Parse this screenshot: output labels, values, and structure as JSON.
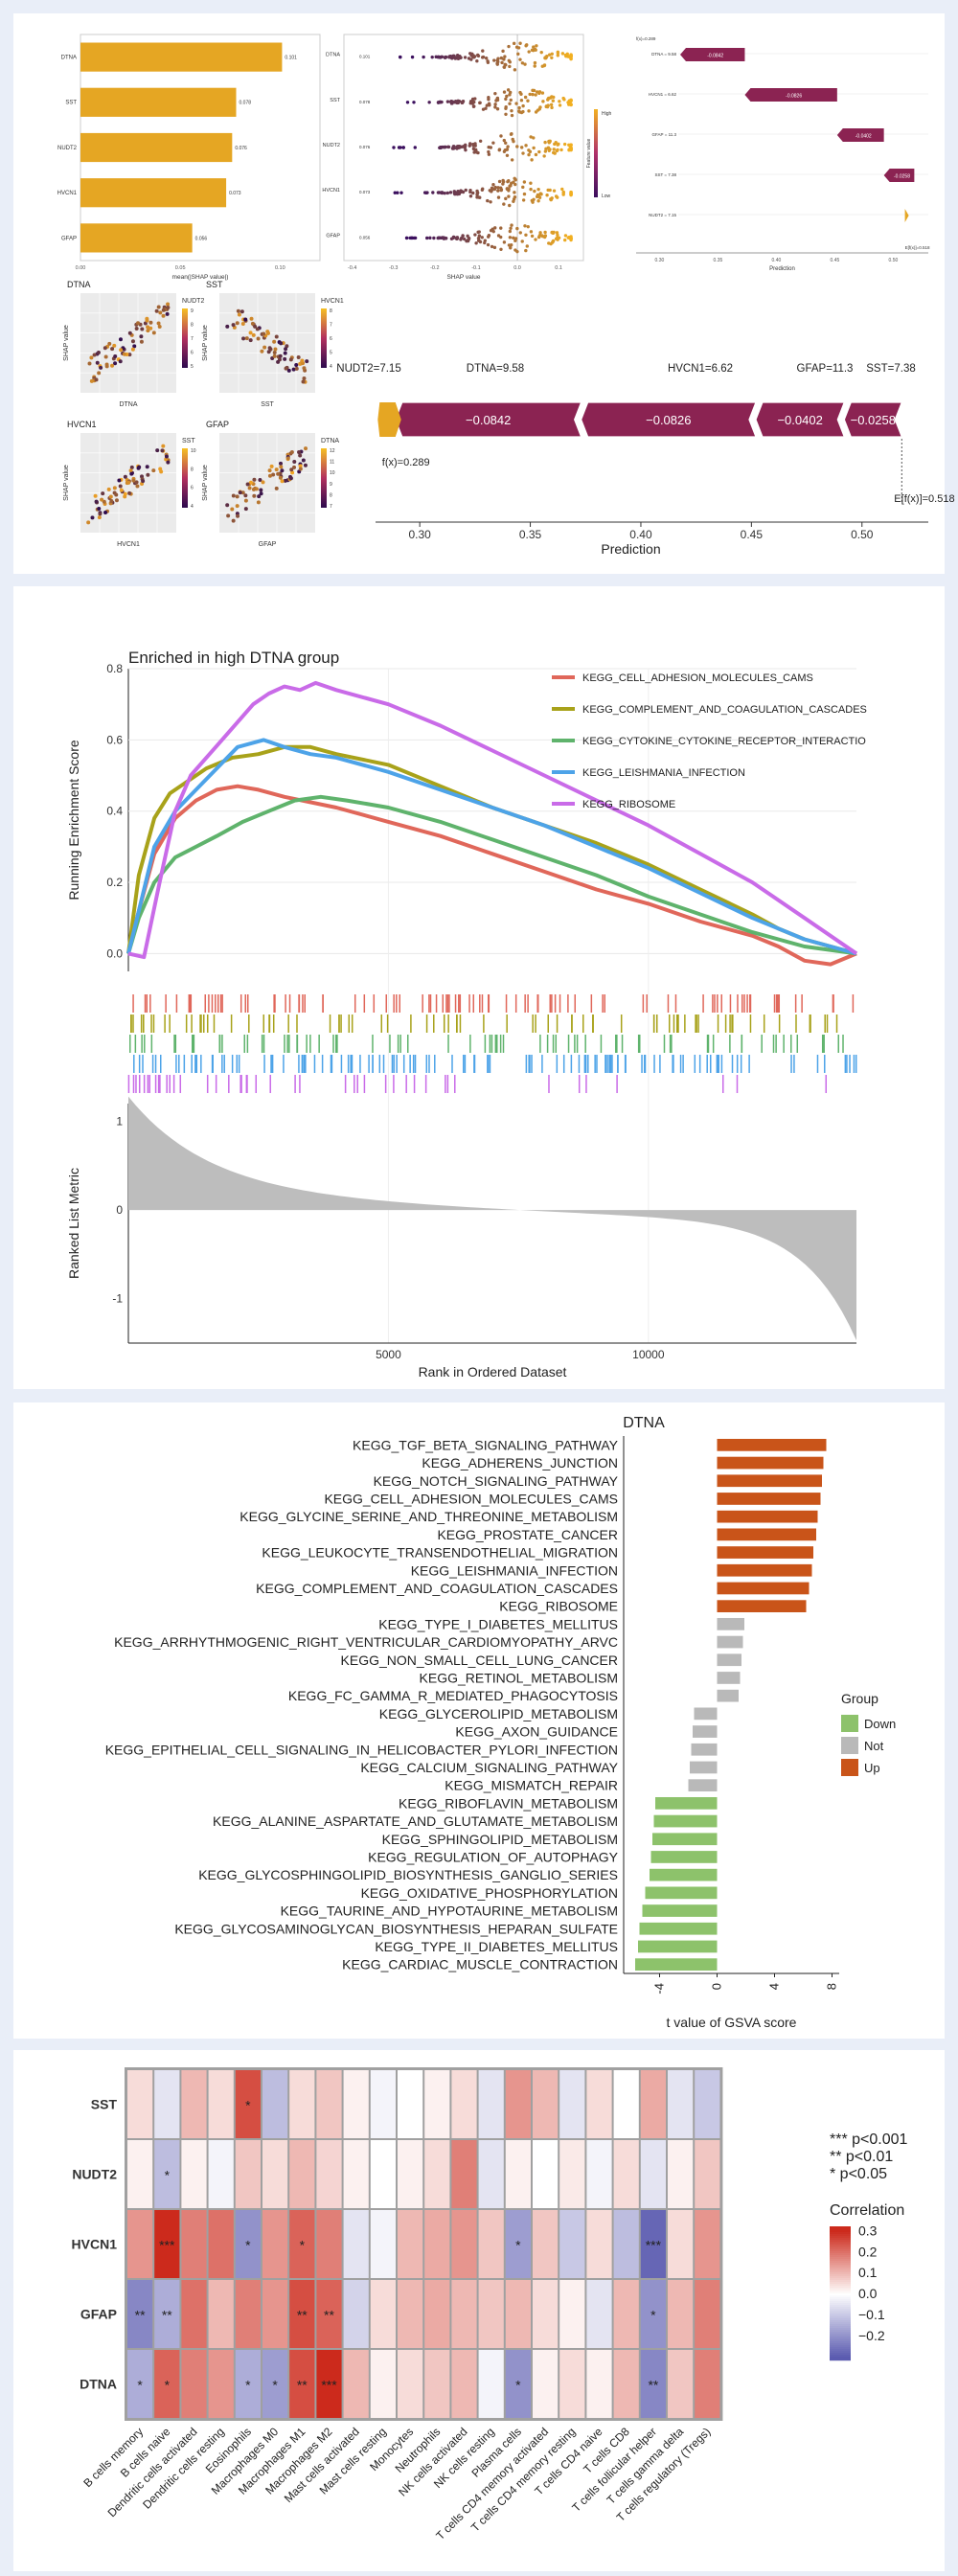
{
  "panel_a": {
    "bar": {
      "title": "",
      "xlabel": "mean(|SHAP value|)",
      "categories": [
        "DTNA",
        "SST",
        "NUDT2",
        "HVCN1",
        "GFAP"
      ],
      "values": [
        0.101,
        0.078,
        0.076,
        0.073,
        0.056
      ],
      "value_labels": [
        "0.101",
        "0.078",
        "0.076",
        "0.073",
        "0.056"
      ],
      "xticks": [
        "0.00",
        "0.05",
        "0.10"
      ],
      "xlim": [
        0,
        0.12
      ],
      "color": "#e5a623"
    },
    "beeswarm": {
      "xlabel": "SHAP value",
      "categories": [
        "DTNA",
        "SST",
        "NUDT2",
        "HVCN1",
        "GFAP"
      ],
      "mean_labels": [
        "0.101",
        "0.078",
        "0.076",
        "0.073",
        "0.056"
      ],
      "xticks": [
        "-0.4",
        "-0.3",
        "-0.2",
        "-0.1",
        "0.0",
        "0.1"
      ],
      "xlim": [
        -0.42,
        0.16
      ],
      "colorbar_label": "Feature value",
      "colorbar_high": "High",
      "colorbar_low": "Low"
    },
    "small_waterfall": {
      "xlabel": "Prediction",
      "top_label": "f(x)=0.289",
      "bottom_label": "E[f(x)]=0.518",
      "rows": [
        {
          "label": "DTNA = 9.58",
          "value": "-0.0842"
        },
        {
          "label": "HVCN1 = 6.62",
          "value": "-0.0826"
        },
        {
          "label": "GFAP = 11.3",
          "value": "-0.0402"
        },
        {
          "label": "SST = 7.38",
          "value": "-0.0258"
        },
        {
          "label": "NUDT2 = 7.15",
          "value": ""
        }
      ],
      "xticks": [
        "0.30",
        "0.35",
        "0.40",
        "0.45",
        "0.50"
      ]
    },
    "dependence": [
      {
        "title": "DTNA",
        "xlabel": "DTNA",
        "ylabel": "SHAP value",
        "color_feature": "NUDT2",
        "cticks": [
          "9",
          "8",
          "7",
          "6",
          "5"
        ]
      },
      {
        "title": "SST",
        "xlabel": "SST",
        "ylabel": "SHAP value",
        "color_feature": "HVCN1",
        "cticks": [
          "8",
          "7",
          "6",
          "5",
          "4"
        ]
      },
      {
        "title": "HVCN1",
        "xlabel": "HVCN1",
        "ylabel": "SHAP value",
        "color_feature": "SST",
        "cticks": [
          "10",
          "8",
          "6",
          "4"
        ]
      },
      {
        "title": "GFAP",
        "xlabel": "GFAP",
        "ylabel": "SHAP value",
        "color_feature": "DTNA",
        "cticks": [
          "12",
          "11",
          "10",
          "9",
          "8",
          "7"
        ]
      }
    ],
    "force": {
      "labels": [
        "NUDT2=7.15",
        "DTNA=9.58",
        "HVCN1=6.62",
        "GFAP=11.3",
        "SST=7.38"
      ],
      "segments": [
        {
          "value": "−0.0842",
          "start": 0.373,
          "end": 0.289
        },
        {
          "value": "−0.0826",
          "start": 0.452,
          "end": 0.373
        },
        {
          "value": "−0.0402",
          "start": 0.492,
          "end": 0.452
        },
        {
          "value": "−0.0258",
          "start": 0.518,
          "end": 0.492
        }
      ],
      "small_start": 0.281,
      "small_end": 0.289,
      "fx_label": "f(x)=0.289",
      "efx_label": "E[f(x)]=0.518",
      "xlabel": "Prediction",
      "xticks": [
        0.3,
        0.35,
        0.4,
        0.45,
        0.5
      ],
      "xtick_labels": [
        "0.30",
        "0.35",
        "0.40",
        "0.45",
        "0.50"
      ],
      "xlim": [
        0.28,
        0.53
      ],
      "segment_color": "#8b2352",
      "small_color": "#e5a623"
    }
  },
  "chart_data": [
    {
      "type": "line",
      "title": "Enriched in high DTNA group",
      "xlabel": "Rank in Ordered Dataset",
      "ylabel": "Running Enrichment Score",
      "ylabel2": "Ranked List Metric",
      "ylim": [
        -0.05,
        0.8
      ],
      "yticks": [
        "0.0",
        "0.2",
        "0.4",
        "0.6",
        "0.8"
      ],
      "xlim": [
        0,
        14000
      ],
      "xticks": [
        "5000",
        "10000"
      ],
      "ylim2": [
        -1.5,
        1.2
      ],
      "yticks2": [
        "1",
        "0",
        "-1"
      ],
      "legend_position": "top-right",
      "series": [
        {
          "name": "KEGG_CELL_ADHESION_MOLECULES_CAMS",
          "color": "#e0675a",
          "x": [
            0,
            200,
            500,
            900,
            1300,
            1700,
            2100,
            2500,
            3000,
            4000,
            5000,
            6000,
            7000,
            8000,
            9000,
            10000,
            11000,
            12000,
            12500,
            13000,
            13500,
            14000
          ],
          "y": [
            0.0,
            0.12,
            0.28,
            0.38,
            0.43,
            0.46,
            0.47,
            0.46,
            0.44,
            0.41,
            0.37,
            0.33,
            0.28,
            0.23,
            0.18,
            0.14,
            0.09,
            0.05,
            0.02,
            -0.02,
            -0.03,
            0.0
          ]
        },
        {
          "name": "KEGG_COMPLEMENT_AND_COAGULATION_CASCADES",
          "color": "#a8a21a",
          "x": [
            0,
            200,
            500,
            800,
            1100,
            1500,
            2000,
            2500,
            3000,
            3500,
            4000,
            5000,
            6000,
            7000,
            8000,
            9000,
            10000,
            11000,
            12000,
            12500,
            13000,
            14000
          ],
          "y": [
            0.0,
            0.22,
            0.38,
            0.45,
            0.48,
            0.52,
            0.55,
            0.56,
            0.58,
            0.58,
            0.56,
            0.53,
            0.47,
            0.41,
            0.36,
            0.31,
            0.25,
            0.18,
            0.11,
            0.07,
            0.04,
            0.0
          ]
        },
        {
          "name": "KEGG_CYTOKINE_CYTOKINE_RECEPTOR_INTERACTIO",
          "color": "#5fb36c",
          "x": [
            0,
            200,
            500,
            900,
            1300,
            1700,
            2200,
            2700,
            3200,
            3700,
            4200,
            5000,
            6000,
            7000,
            8000,
            9000,
            10000,
            11000,
            12000,
            13000,
            14000
          ],
          "y": [
            0.0,
            0.1,
            0.2,
            0.27,
            0.3,
            0.33,
            0.37,
            0.4,
            0.43,
            0.44,
            0.43,
            0.41,
            0.37,
            0.32,
            0.27,
            0.22,
            0.16,
            0.11,
            0.06,
            0.02,
            0.0
          ]
        },
        {
          "name": "KEGG_LEISHMANIA_INFECTION",
          "color": "#4da3e8",
          "x": [
            0,
            200,
            500,
            900,
            1300,
            1700,
            2100,
            2600,
            3000,
            3500,
            4000,
            5000,
            6000,
            7000,
            8000,
            9000,
            10000,
            11000,
            12000,
            13000,
            14000
          ],
          "y": [
            0.0,
            0.12,
            0.3,
            0.4,
            0.46,
            0.52,
            0.58,
            0.6,
            0.58,
            0.56,
            0.55,
            0.51,
            0.46,
            0.41,
            0.36,
            0.3,
            0.24,
            0.17,
            0.1,
            0.04,
            0.0
          ]
        },
        {
          "name": "KEGG_RIBOSOME",
          "color": "#c96be8",
          "x": [
            0,
            300,
            600,
            900,
            1200,
            1500,
            1800,
            2100,
            2400,
            2700,
            3000,
            3300,
            3600,
            4000,
            5000,
            6000,
            7000,
            8000,
            9000,
            10000,
            11000,
            12000,
            13000,
            14000
          ],
          "y": [
            0.0,
            -0.01,
            0.2,
            0.4,
            0.5,
            0.55,
            0.6,
            0.65,
            0.7,
            0.73,
            0.75,
            0.74,
            0.76,
            0.74,
            0.7,
            0.64,
            0.57,
            0.5,
            0.43,
            0.36,
            0.28,
            0.2,
            0.1,
            0.0
          ]
        }
      ]
    },
    {
      "type": "bar",
      "title": "DTNA",
      "xlabel": "t value of GSVA score",
      "xticks": [
        "-4",
        "0",
        "4",
        "8"
      ],
      "xlim": [
        -6.5,
        8.5
      ],
      "legend_title": "Group",
      "legend_position": "right",
      "legend": [
        {
          "name": "Down",
          "color": "#8dc26b"
        },
        {
          "name": "Not",
          "color": "#b9b9b9"
        },
        {
          "name": "Up",
          "color": "#c95419"
        }
      ],
      "categories": [
        "KEGG_TGF_BETA_SIGNALING_PATHWAY",
        "KEGG_ADHERENS_JUNCTION",
        "KEGG_NOTCH_SIGNALING_PATHWAY",
        "KEGG_CELL_ADHESION_MOLECULES_CAMS",
        "KEGG_GLYCINE_SERINE_AND_THREONINE_METABOLISM",
        "KEGG_PROSTATE_CANCER",
        "KEGG_LEUKOCYTE_TRANSENDOTHELIAL_MIGRATION",
        "KEGG_LEISHMANIA_INFECTION",
        "KEGG_COMPLEMENT_AND_COAGULATION_CASCADES",
        "KEGG_RIBOSOME",
        "KEGG_TYPE_I_DIABETES_MELLITUS",
        "KEGG_ARRHYTHMOGENIC_RIGHT_VENTRICULAR_CARDIOMYOPATHY_ARVC",
        "KEGG_NON_SMALL_CELL_LUNG_CANCER",
        "KEGG_RETINOL_METABOLISM",
        "KEGG_FC_GAMMA_R_MEDIATED_PHAGOCYTOSIS",
        "KEGG_GLYCEROLIPID_METABOLISM",
        "KEGG_AXON_GUIDANCE",
        "KEGG_EPITHELIAL_CELL_SIGNALING_IN_HELICOBACTER_PYLORI_INFECTION",
        "KEGG_CALCIUM_SIGNALING_PATHWAY",
        "KEGG_MISMATCH_REPAIR",
        "KEGG_RIBOFLAVIN_METABOLISM",
        "KEGG_ALANINE_ASPARTATE_AND_GLUTAMATE_METABOLISM",
        "KEGG_SPHINGOLIPID_METABOLISM",
        "KEGG_REGULATION_OF_AUTOPHAGY",
        "KEGG_GLYCOSPHINGOLIPID_BIOSYNTHESIS_GANGLIO_SERIES",
        "KEGG_OXIDATIVE_PHOSPHORYLATION",
        "KEGG_TAURINE_AND_HYPOTAURINE_METABOLISM",
        "KEGG_GLYCOSAMINOGLYCAN_BIOSYNTHESIS_HEPARAN_SULFATE",
        "KEGG_TYPE_II_DIABETES_MELLITUS",
        "KEGG_CARDIAC_MUSCLE_CONTRACTION"
      ],
      "values": [
        7.6,
        7.4,
        7.3,
        7.2,
        7.0,
        6.9,
        6.7,
        6.6,
        6.4,
        6.2,
        1.9,
        1.8,
        1.7,
        1.6,
        1.5,
        -1.6,
        -1.7,
        -1.8,
        -1.9,
        -2.0,
        -4.3,
        -4.4,
        -4.5,
        -4.6,
        -4.7,
        -5.0,
        -5.2,
        -5.4,
        -5.5,
        -5.7
      ],
      "groups": [
        "Up",
        "Up",
        "Up",
        "Up",
        "Up",
        "Up",
        "Up",
        "Up",
        "Up",
        "Up",
        "Not",
        "Not",
        "Not",
        "Not",
        "Not",
        "Not",
        "Not",
        "Not",
        "Not",
        "Not",
        "Down",
        "Down",
        "Down",
        "Down",
        "Down",
        "Down",
        "Down",
        "Down",
        "Down",
        "Down"
      ]
    },
    {
      "type": "heatmap",
      "rows": [
        "SST",
        "NUDT2",
        "HVCN1",
        "GFAP",
        "DTNA"
      ],
      "columns": [
        "B cells memory",
        "B cells naive",
        "Dendritic cells activated",
        "Dendritic cells resting",
        "Eosinophils",
        "Macrophages M0",
        "Macrophages M1",
        "Macrophages M2",
        "Mast cells activated",
        "Mast cells resting",
        "Monocytes",
        "Neutrophils",
        "NK cells activated",
        "NK cells resting",
        "Plasma cells",
        "T cells CD4 memory activated",
        "T cells CD4 memory resting",
        "T cells CD4 naive",
        "T cells CD8",
        "T cells follicular helper",
        "T cells gamma delta",
        "T cells regulatory (Tregs)"
      ],
      "values": [
        [
          0.05,
          -0.05,
          0.1,
          0.05,
          0.25,
          -0.12,
          0.05,
          0.08,
          0.02,
          -0.02,
          0.0,
          0.02,
          0.05,
          -0.05,
          0.15,
          0.1,
          -0.05,
          0.05,
          0.0,
          0.12,
          -0.05,
          -0.1
        ],
        [
          0.02,
          -0.12,
          0.02,
          -0.02,
          0.08,
          0.05,
          0.1,
          0.06,
          0.02,
          0.0,
          0.02,
          0.05,
          0.18,
          -0.05,
          0.02,
          0.0,
          0.03,
          -0.02,
          0.05,
          -0.05,
          0.02,
          0.08
        ],
        [
          0.15,
          0.3,
          0.18,
          0.2,
          -0.2,
          0.15,
          0.22,
          0.18,
          -0.05,
          -0.02,
          0.1,
          0.12,
          0.15,
          0.08,
          -0.18,
          0.08,
          -0.1,
          0.05,
          -0.12,
          -0.28,
          0.05,
          0.15
        ],
        [
          -0.22,
          -0.15,
          0.2,
          0.1,
          0.18,
          0.15,
          0.25,
          0.22,
          -0.08,
          0.05,
          0.1,
          0.12,
          0.1,
          0.08,
          0.1,
          0.05,
          0.02,
          -0.05,
          0.1,
          -0.2,
          0.1,
          0.18
        ],
        [
          -0.15,
          0.22,
          0.18,
          0.15,
          -0.15,
          -0.18,
          0.25,
          0.3,
          0.1,
          0.02,
          0.05,
          0.08,
          0.1,
          -0.02,
          -0.2,
          0.02,
          0.05,
          0.02,
          0.1,
          -0.22,
          0.08,
          0.18
        ]
      ],
      "significance": [
        [
          "",
          "",
          "",
          "",
          "*",
          "",
          "",
          "",
          "",
          "",
          "",
          "",
          "",
          "",
          "",
          "",
          "",
          "",
          "",
          "",
          "",
          ""
        ],
        [
          "",
          "*",
          "",
          "",
          "",
          "",
          "",
          "",
          "",
          "",
          "",
          "",
          "",
          "",
          "",
          "",
          "",
          "",
          "",
          "",
          "",
          ""
        ],
        [
          "",
          "***",
          "",
          "",
          "*",
          "",
          "*",
          "",
          "",
          "",
          "",
          "",
          "",
          "",
          "*",
          "",
          "",
          "",
          "",
          "***",
          "",
          ""
        ],
        [
          "**",
          "**",
          "",
          "",
          "",
          "",
          "**",
          "**",
          "",
          "",
          "",
          "",
          "",
          "",
          "",
          "",
          "",
          "",
          "",
          "*",
          "",
          ""
        ],
        [
          "*",
          "*",
          "",
          "",
          "*",
          "*",
          "**",
          "***",
          "",
          "",
          "",
          "",
          "",
          "",
          "*",
          "",
          "",
          "",
          "",
          "**",
          "",
          ""
        ]
      ],
      "sig_legend": [
        "*** p<0.001",
        "** p<0.01",
        "* p<0.05"
      ],
      "colorbar_title": "Correlation",
      "colorbar_ticks": [
        "0.3",
        "0.2",
        "0.1",
        "0.0",
        "−0.1",
        "−0.2"
      ],
      "colorbar_values": [
        0.3,
        0.2,
        0.1,
        0.0,
        -0.1,
        -0.2
      ],
      "color_range": [
        -0.3,
        0.3
      ],
      "colors": {
        "low": "#5b5bb0",
        "mid": "#ffffff",
        "high": "#cc2a1c"
      }
    }
  ]
}
